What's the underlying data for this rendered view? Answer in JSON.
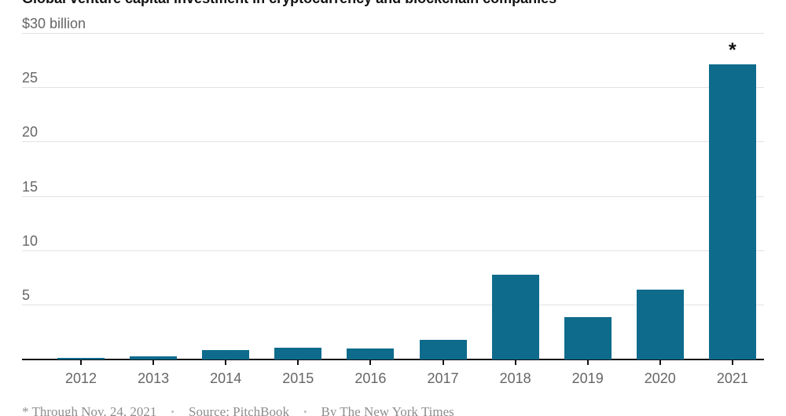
{
  "page": {
    "title": "Global venture capital investment in cryptocurrency and blockchain companies"
  },
  "footer": {
    "footnote": "* Through Nov. 24, 2021",
    "separator": "•",
    "source": "Source: PitchBook",
    "byline": "By The New York Times"
  },
  "chart_data": {
    "type": "bar",
    "title": "Global venture capital investment in cryptocurrency and blockchain companies",
    "categories": [
      "2012",
      "2013",
      "2014",
      "2015",
      "2016",
      "2017",
      "2018",
      "2019",
      "2020",
      "2021"
    ],
    "values": [
      0.1,
      0.3,
      0.9,
      1.1,
      1.0,
      1.8,
      7.8,
      3.9,
      6.4,
      27.2
    ],
    "xlabel": "",
    "ylabel": "",
    "ylim": [
      0,
      30
    ],
    "yticks": [
      5,
      10,
      15,
      20,
      25,
      30
    ],
    "ytick_labels": [
      "5",
      "10",
      "15",
      "20",
      "25",
      "$30 billion"
    ],
    "grid": true,
    "legend_position": "none",
    "annotations": [
      {
        "category": "2021",
        "text": "*"
      }
    ],
    "colors": {
      "bar": "#0e6b8c",
      "gridline": "#e2e2e2",
      "axis": "#121212",
      "tick_label": "#666666",
      "footer_text": "#8e8e8e",
      "title": "#121212",
      "background": "#ffffff"
    }
  }
}
